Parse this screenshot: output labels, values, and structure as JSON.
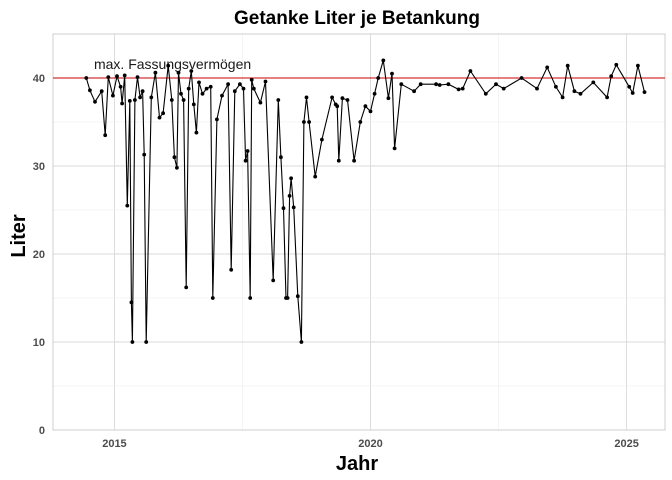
{
  "chart_data": {
    "type": "line",
    "title": "Getanke Liter je Betankung",
    "xlabel": "Jahr",
    "ylabel": "Liter",
    "xlim": [
      2013.8,
      2025.75
    ],
    "ylim": [
      0,
      45
    ],
    "x_ticks": [
      2015,
      2020,
      2025
    ],
    "y_ticks": [
      0,
      10,
      20,
      30,
      40
    ],
    "grid": true,
    "reference_line": {
      "y": 40,
      "color": "#cc0000",
      "label": "max. Fassungsvermögen"
    },
    "line_color": "#000000",
    "series": [
      {
        "x": [
          2014.45,
          2014.52,
          2014.62,
          2014.75,
          2014.82,
          2014.88,
          2014.97,
          2015.05,
          2015.12,
          2015.15,
          2015.2,
          2015.25,
          2015.3,
          2015.33,
          2015.35,
          2015.4,
          2015.45,
          2015.5,
          2015.55,
          2015.58,
          2015.62,
          2015.72,
          2015.8,
          2015.88,
          2015.95,
          2016.05,
          2016.12,
          2016.17,
          2016.22,
          2016.25,
          2016.3,
          2016.35,
          2016.4,
          2016.45,
          2016.5,
          2016.55,
          2016.6,
          2016.65,
          2016.72,
          2016.8,
          2016.88,
          2016.92,
          2017.0,
          2017.1,
          2017.22,
          2017.28,
          2017.35,
          2017.45,
          2017.52,
          2017.56,
          2017.6,
          2017.65,
          2017.68,
          2017.72,
          2017.85,
          2017.95,
          2018.1,
          2018.2,
          2018.25,
          2018.3,
          2018.35,
          2018.38,
          2018.42,
          2018.45,
          2018.5,
          2018.58,
          2018.65,
          2018.7,
          2018.75,
          2018.8,
          2018.92,
          2019.05,
          2019.25,
          2019.32,
          2019.35,
          2019.38,
          2019.45,
          2019.55,
          2019.68,
          2019.8,
          2019.9,
          2020.0,
          2020.08,
          2020.15,
          2020.25,
          2020.35,
          2020.42,
          2020.47,
          2020.6,
          2020.85,
          2020.98,
          2021.28,
          2021.35,
          2021.52,
          2021.72,
          2021.8,
          2021.95,
          2022.25,
          2022.45,
          2022.6,
          2022.95,
          2023.25,
          2023.45,
          2023.62,
          2023.75,
          2023.85,
          2023.98,
          2024.1,
          2024.35,
          2024.62,
          2024.7,
          2024.8,
          2025.05,
          2025.12,
          2025.22,
          2025.35
        ],
        "values": [
          40.0,
          38.6,
          37.3,
          38.5,
          33.5,
          40.1,
          38.0,
          40.2,
          39.0,
          37.1,
          40.3,
          25.5,
          37.4,
          14.5,
          10.0,
          37.5,
          40.1,
          37.8,
          38.5,
          31.3,
          10.0,
          37.8,
          40.6,
          35.5,
          36.0,
          41.4,
          37.5,
          31.0,
          29.8,
          40.6,
          38.2,
          37.5,
          16.2,
          38.8,
          40.8,
          37.0,
          33.8,
          39.5,
          38.2,
          38.8,
          39.0,
          15.0,
          35.3,
          38.0,
          39.3,
          18.2,
          38.5,
          39.3,
          38.8,
          30.6,
          31.7,
          15.0,
          39.8,
          38.8,
          37.2,
          39.6,
          17.0,
          37.5,
          31.0,
          25.2,
          15.0,
          15.0,
          26.6,
          28.6,
          25.3,
          15.2,
          10.0,
          35.0,
          37.8,
          35.0,
          28.8,
          33.0,
          37.8,
          37.0,
          36.8,
          30.6,
          37.7,
          37.5,
          30.6,
          35.0,
          36.8,
          36.2,
          38.2,
          40.0,
          42.0,
          37.7,
          40.5,
          32.0,
          39.3,
          38.5,
          39.3,
          39.3,
          39.2,
          39.3,
          38.7,
          38.8,
          40.8,
          38.2,
          39.3,
          38.8,
          40.0,
          38.8,
          41.2,
          39.0,
          37.8,
          41.4,
          38.5,
          38.2,
          39.5,
          37.8,
          40.2,
          41.5,
          39.0,
          38.3,
          41.4,
          38.4
        ]
      }
    ]
  }
}
